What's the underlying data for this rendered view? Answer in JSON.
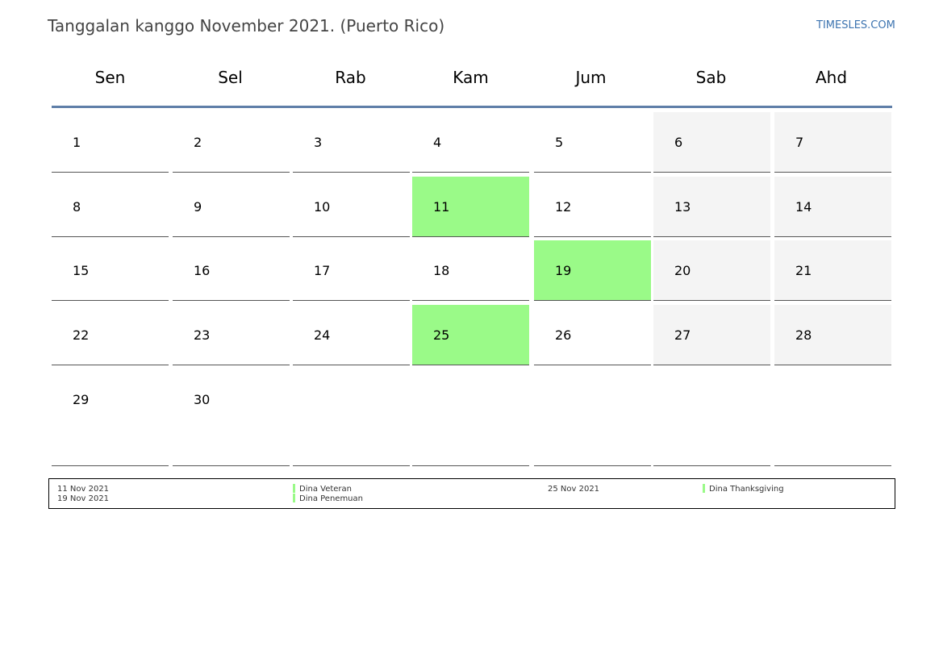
{
  "header": {
    "title": "Tanggalan kanggo November 2021. (Puerto Rico)",
    "site": "TIMESLES.COM"
  },
  "calendar": {
    "weekdays": [
      "Sen",
      "Sel",
      "Rab",
      "Kam",
      "Jum",
      "Sab",
      "Ahd"
    ],
    "weeks": [
      [
        {
          "day": "1"
        },
        {
          "day": "2"
        },
        {
          "day": "3"
        },
        {
          "day": "4"
        },
        {
          "day": "5"
        },
        {
          "day": "6",
          "weekend": true
        },
        {
          "day": "7",
          "weekend": true
        }
      ],
      [
        {
          "day": "8"
        },
        {
          "day": "9"
        },
        {
          "day": "10"
        },
        {
          "day": "11",
          "holiday": true
        },
        {
          "day": "12"
        },
        {
          "day": "13",
          "weekend": true
        },
        {
          "day": "14",
          "weekend": true
        }
      ],
      [
        {
          "day": "15"
        },
        {
          "day": "16"
        },
        {
          "day": "17"
        },
        {
          "day": "18"
        },
        {
          "day": "19",
          "holiday": true
        },
        {
          "day": "20",
          "weekend": true
        },
        {
          "day": "21",
          "weekend": true
        }
      ],
      [
        {
          "day": "22"
        },
        {
          "day": "23"
        },
        {
          "day": "24"
        },
        {
          "day": "25",
          "holiday": true
        },
        {
          "day": "26"
        },
        {
          "day": "27",
          "weekend": true
        },
        {
          "day": "28",
          "weekend": true
        }
      ],
      [
        {
          "day": "29"
        },
        {
          "day": "30"
        },
        {
          "day": ""
        },
        {
          "day": ""
        },
        {
          "day": ""
        },
        {
          "day": ""
        },
        {
          "day": ""
        }
      ]
    ]
  },
  "holidays": {
    "items": [
      {
        "date": "11 Nov 2021",
        "name": "Dina Veteran"
      },
      {
        "date": "19 Nov 2021",
        "name": "Dina Penemuan"
      },
      {
        "date": "25 Nov 2021",
        "name": "Dina Thanksgiving"
      }
    ]
  },
  "colors": {
    "holiday": "#9afa88",
    "weekend": "#f4f4f4",
    "header_rule": "#5f7fa8",
    "link": "#3d74b0"
  }
}
